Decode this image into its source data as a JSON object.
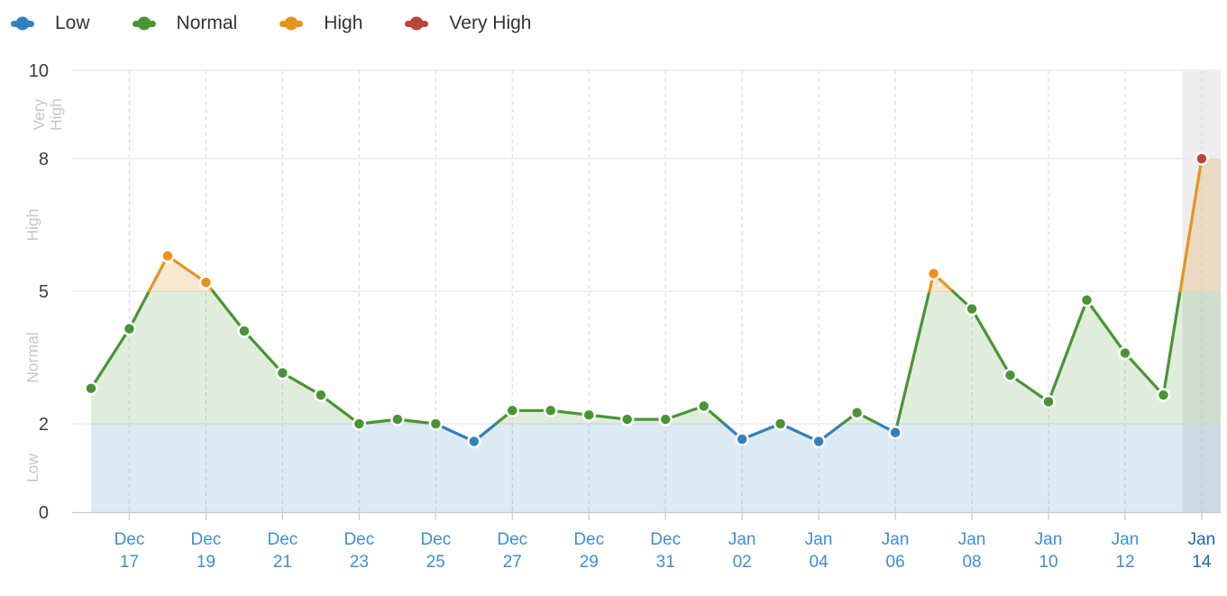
{
  "chart_data": {
    "type": "area",
    "title": "",
    "xlabel": "",
    "ylabel": "",
    "ylim": [
      0,
      10
    ],
    "y_ticks": [
      0,
      2,
      5,
      8,
      10
    ],
    "x_tick_every": 2,
    "grid": "on",
    "legend_position": "top-left",
    "x": [
      "Dec 16",
      "Dec 17",
      "Dec 18",
      "Dec 19",
      "Dec 20",
      "Dec 21",
      "Dec 22",
      "Dec 23",
      "Dec 24",
      "Dec 25",
      "Dec 26",
      "Dec 27",
      "Dec 28",
      "Dec 29",
      "Dec 30",
      "Dec 31",
      "Jan 01",
      "Jan 02",
      "Jan 03",
      "Jan 04",
      "Jan 05",
      "Jan 06",
      "Jan 07",
      "Jan 08",
      "Jan 09",
      "Jan 10",
      "Jan 11",
      "Jan 12",
      "Jan 13",
      "Jan 14"
    ],
    "values": [
      2.8,
      4.15,
      5.8,
      5.2,
      4.1,
      3.15,
      2.65,
      2.0,
      2.1,
      2.0,
      1.6,
      2.3,
      2.3,
      2.2,
      2.1,
      2.1,
      2.4,
      1.65,
      2.0,
      1.6,
      2.25,
      1.8,
      5.4,
      4.6,
      3.1,
      2.5,
      4.8,
      3.6,
      2.65,
      8.0
    ],
    "bands": [
      {
        "label": "Low",
        "min": 0,
        "max": 2,
        "color": "#3180bf",
        "fill": "rgba(49,128,191,0.17)"
      },
      {
        "label": "Normal",
        "min": 2,
        "max": 5,
        "color": "#4a9435",
        "fill": "rgba(74,148,53,0.17)"
      },
      {
        "label": "High",
        "min": 5,
        "max": 8,
        "color": "#e8921e",
        "fill": "rgba(232,146,30,0.20)"
      },
      {
        "label": "Very High",
        "min": 8,
        "max": 10,
        "color": "#b8463b",
        "fill": "rgba(184,70,59,0.17)"
      }
    ],
    "last_point_highlighted": true,
    "colors": {
      "x_tick_label": "#3e8ed2",
      "x_tick_label_last": "#1e6cae",
      "y_tick_label": "#3d3d3d",
      "band_label": "#c7c7c7",
      "h_gridline": "#e8e8e8",
      "v_gridline_dashed": "#dcdcdc",
      "axis_line": "#c9c9c9",
      "tick_mark": "#c9c9c9",
      "highlight_band": "#ededed",
      "marker_ring": "#ffffff"
    }
  }
}
